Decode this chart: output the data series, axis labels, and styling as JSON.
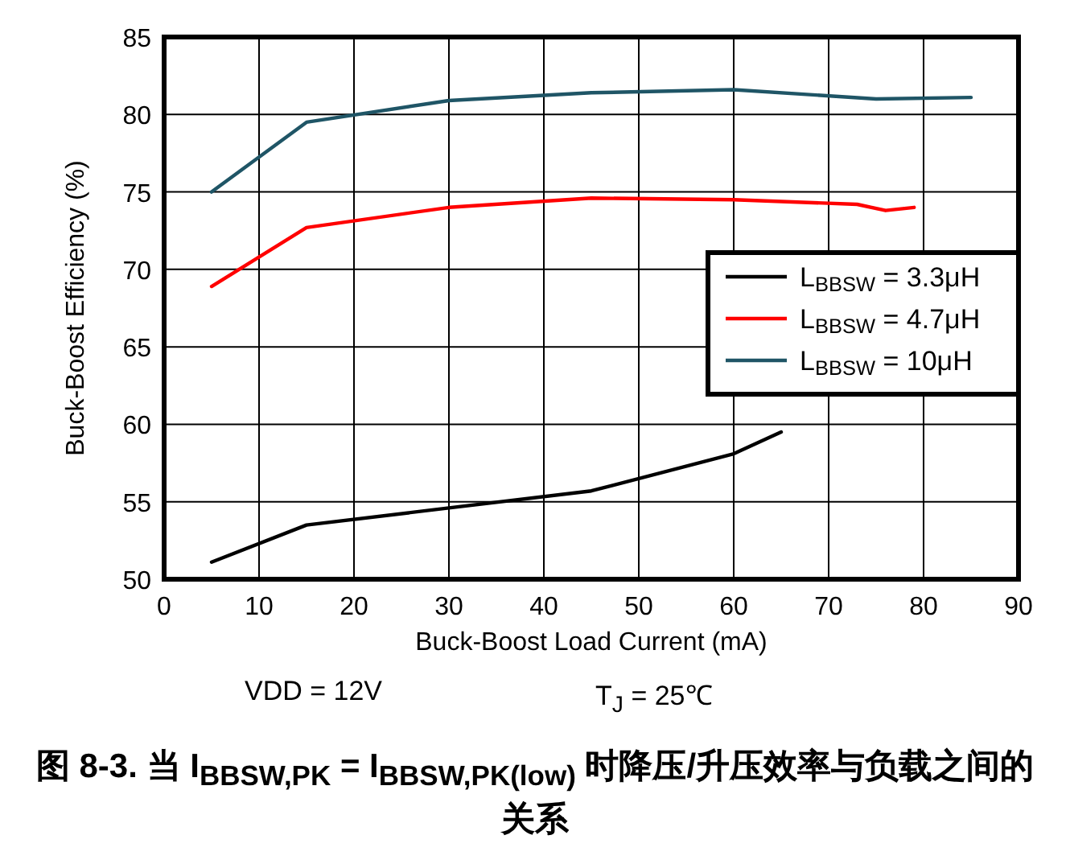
{
  "chart_data": {
    "type": "line",
    "title": "图 8-3. 当 I$_{BBSW,PK}$ = I$_{BBSW,PK(low)}$ 时降压/升压效率与负载之间的关系",
    "xlabel": "Buck-Boost Load Current (mA)",
    "ylabel": "Buck-Boost Efficiency (%)",
    "xlim": [
      0,
      90
    ],
    "ylim": [
      50,
      85
    ],
    "xticks": [
      0,
      10,
      20,
      30,
      40,
      50,
      60,
      70,
      80,
      90
    ],
    "yticks": [
      50,
      55,
      60,
      65,
      70,
      75,
      80,
      85
    ],
    "grid": true,
    "legend": "right",
    "series": [
      {
        "name": "L$_{BBSW}$ = 3.3μH",
        "color": "#000000",
        "x": [
          5,
          15,
          30,
          45,
          60,
          65
        ],
        "values": [
          51.1,
          53.5,
          54.6,
          55.7,
          58.1,
          59.5
        ]
      },
      {
        "name": "L$_{BBSW}$ = 4.7μH",
        "color": "#ff0000",
        "x": [
          5,
          15,
          30,
          45,
          60,
          73,
          76,
          79
        ],
        "values": [
          68.9,
          72.7,
          74.0,
          74.6,
          74.5,
          74.2,
          73.8,
          74.0
        ]
      },
      {
        "name": "L$_{BBSW}$ = 10μH",
        "color": "#1f5566",
        "x": [
          5,
          15,
          30,
          45,
          60,
          75,
          85
        ],
        "values": [
          75.0,
          79.5,
          80.9,
          81.4,
          81.6,
          81.0,
          81.1
        ]
      }
    ],
    "annotations": [
      "VDD = 12V",
      "T$_{J}$ = 25℃"
    ]
  }
}
